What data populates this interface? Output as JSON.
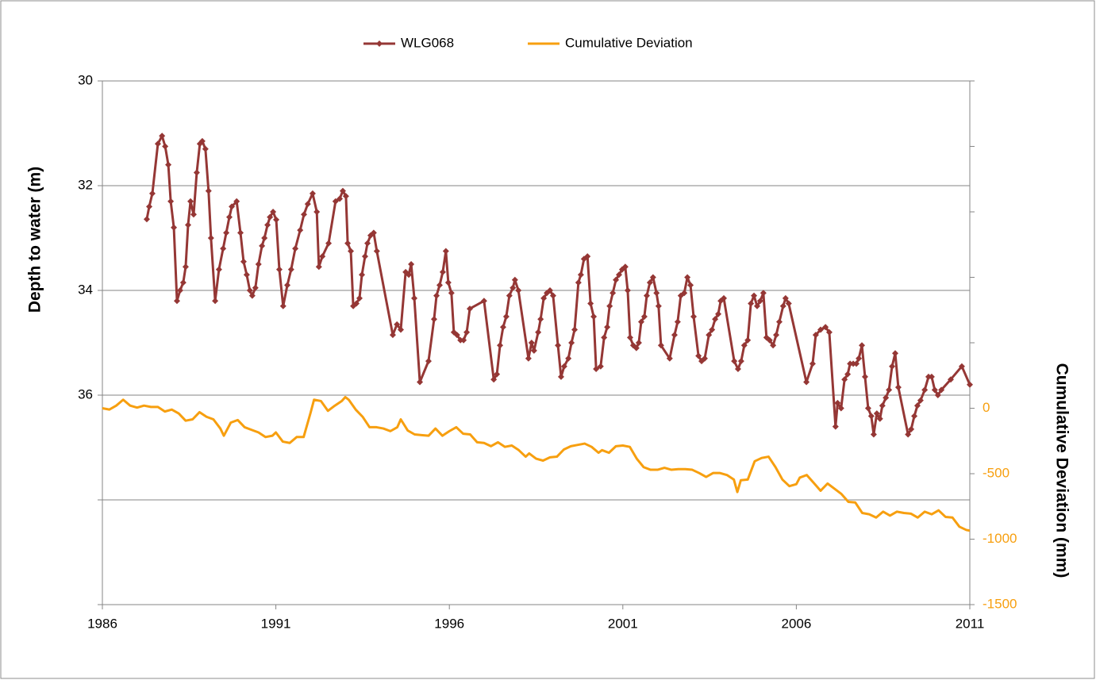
{
  "chart_data": {
    "type": "line",
    "y_title": "Depth to water (m)",
    "y2_title": "Cumulative Deviation (mm)",
    "xlim": [
      1986,
      2011
    ],
    "xticks": [
      1986,
      1991,
      1996,
      2001,
      2006,
      2011
    ],
    "ylim": [
      40,
      30
    ],
    "yticks": [
      30,
      32,
      34,
      36,
      {
        "value": 38,
        "label": null
      },
      {
        "value": 40,
        "label": null
      }
    ],
    "y2lim": [
      -1500,
      2500
    ],
    "y2ticks": [
      -1500,
      -1000,
      -500,
      0,
      {
        "value": 500,
        "label": null
      },
      {
        "value": 1000,
        "label": null
      },
      {
        "value": 1500,
        "label": null
      },
      {
        "value": 2000,
        "label": null
      },
      {
        "value": 2500,
        "label": null
      }
    ],
    "grid": true,
    "legend": "top",
    "series": [
      {
        "name": "WLG068",
        "color": "#953735",
        "marker": "diamond",
        "x": [
          1987.28,
          1987.35,
          1987.44,
          1987.6,
          1987.72,
          1987.81,
          1987.9,
          1987.97,
          1988.06,
          1988.15,
          1988.24,
          1988.33,
          1988.4,
          1988.47,
          1988.54,
          1988.63,
          1988.72,
          1988.81,
          1988.88,
          1988.97,
          1989.06,
          1989.13,
          1989.25,
          1989.36,
          1989.48,
          1989.57,
          1989.66,
          1989.73,
          1989.87,
          1989.98,
          1990.07,
          1990.16,
          1990.25,
          1990.32,
          1990.41,
          1990.5,
          1990.6,
          1990.67,
          1990.76,
          1990.83,
          1990.92,
          1991.01,
          1991.1,
          1991.21,
          1991.33,
          1991.44,
          1991.56,
          1991.7,
          1991.81,
          1991.92,
          1992.06,
          1992.18,
          1992.24,
          1992.34,
          1992.52,
          1992.72,
          1992.84,
          1992.93,
          1993.02,
          1993.07,
          1993.16,
          1993.23,
          1993.32,
          1993.41,
          1993.48,
          1993.57,
          1993.64,
          1993.73,
          1993.82,
          1993.91,
          1994.37,
          1994.49,
          1994.6,
          1994.74,
          1994.83,
          1994.9,
          1994.99,
          1995.15,
          1995.4,
          1995.56,
          1995.63,
          1995.72,
          1995.81,
          1995.9,
          1995.97,
          1996.06,
          1996.13,
          1996.22,
          1996.32,
          1996.41,
          1996.5,
          1996.59,
          1997.0,
          1997.28,
          1997.37,
          1997.46,
          1997.55,
          1997.64,
          1997.73,
          1997.83,
          1997.89,
          1997.99,
          1998.28,
          1998.37,
          1998.44,
          1998.56,
          1998.63,
          1998.72,
          1998.81,
          1998.9,
          1998.99,
          1999.13,
          1999.22,
          1999.31,
          1999.43,
          1999.52,
          1999.61,
          1999.72,
          1999.79,
          1999.88,
          1999.98,
          2000.07,
          2000.16,
          2000.23,
          2000.36,
          2000.46,
          2000.55,
          2000.62,
          2000.71,
          2000.8,
          2000.89,
          2000.98,
          2001.07,
          2001.14,
          2001.21,
          2001.3,
          2001.39,
          2001.46,
          2001.53,
          2001.62,
          2001.69,
          2001.78,
          2001.87,
          2001.97,
          2002.03,
          2002.1,
          2002.35,
          2002.49,
          2002.58,
          2002.67,
          2002.77,
          2002.86,
          2002.95,
          2003.04,
          2003.18,
          2003.27,
          2003.36,
          2003.48,
          2003.57,
          2003.66,
          2003.75,
          2003.82,
          2003.91,
          2004.21,
          2004.32,
          2004.41,
          2004.5,
          2004.6,
          2004.69,
          2004.78,
          2004.87,
          2004.96,
          2005.05,
          2005.14,
          2005.23,
          2005.33,
          2005.42,
          2005.51,
          2005.62,
          2005.69,
          2005.78,
          2006.29,
          2006.47,
          2006.56,
          2006.7,
          2006.84,
          2006.95,
          2007.13,
          2007.19,
          2007.29,
          2007.39,
          2007.48,
          2007.55,
          2007.64,
          2007.73,
          2007.8,
          2007.89,
          2007.98,
          2008.07,
          2008.16,
          2008.23,
          2008.32,
          2008.41,
          2008.48,
          2008.58,
          2008.67,
          2008.76,
          2008.85,
          2008.94,
          2009.22,
          2009.31,
          2009.4,
          2009.49,
          2009.58,
          2009.7,
          2009.81,
          2009.9,
          2009.99,
          2010.08,
          2010.18,
          2010.45,
          2010.77,
          2011.0
        ],
        "values": [
          32.64,
          32.4,
          32.15,
          31.2,
          31.05,
          31.25,
          31.6,
          32.3,
          32.8,
          34.2,
          34.0,
          33.85,
          33.55,
          32.75,
          32.3,
          32.55,
          31.75,
          31.2,
          31.15,
          31.3,
          32.1,
          33.0,
          34.2,
          33.6,
          33.2,
          32.9,
          32.6,
          32.4,
          32.3,
          32.9,
          33.45,
          33.7,
          34.0,
          34.1,
          33.95,
          33.5,
          33.15,
          33.0,
          32.75,
          32.6,
          32.5,
          32.65,
          33.6,
          34.3,
          33.9,
          33.6,
          33.2,
          32.85,
          32.55,
          32.35,
          32.15,
          32.5,
          33.55,
          33.35,
          33.1,
          32.3,
          32.25,
          32.1,
          32.2,
          33.1,
          33.25,
          34.3,
          34.25,
          34.15,
          33.7,
          33.35,
          33.1,
          32.95,
          32.9,
          33.25,
          34.85,
          34.65,
          34.75,
          33.65,
          33.7,
          33.5,
          34.15,
          35.75,
          35.35,
          34.55,
          34.1,
          33.9,
          33.65,
          33.25,
          33.85,
          34.05,
          34.8,
          34.85,
          34.95,
          34.95,
          34.8,
          34.35,
          34.2,
          35.7,
          35.6,
          35.05,
          34.7,
          34.5,
          34.1,
          33.95,
          33.8,
          34.0,
          35.3,
          35.0,
          35.15,
          34.8,
          34.55,
          34.15,
          34.05,
          34.0,
          34.1,
          35.05,
          35.65,
          35.45,
          35.3,
          35.0,
          34.75,
          33.85,
          33.7,
          33.4,
          33.35,
          34.25,
          34.5,
          35.5,
          35.45,
          34.9,
          34.7,
          34.3,
          34.05,
          33.8,
          33.7,
          33.6,
          33.55,
          34.0,
          34.9,
          35.05,
          35.1,
          35.0,
          34.6,
          34.5,
          34.1,
          33.85,
          33.75,
          34.05,
          34.3,
          35.05,
          35.3,
          34.85,
          34.6,
          34.1,
          34.05,
          33.75,
          33.9,
          34.5,
          35.25,
          35.35,
          35.3,
          34.85,
          34.75,
          34.55,
          34.45,
          34.2,
          34.15,
          35.35,
          35.5,
          35.35,
          35.05,
          34.95,
          34.25,
          34.1,
          34.3,
          34.2,
          34.05,
          34.9,
          34.95,
          35.05,
          34.85,
          34.6,
          34.3,
          34.15,
          34.25,
          35.75,
          35.4,
          34.85,
          34.75,
          34.7,
          34.8,
          36.6,
          36.15,
          36.25,
          35.7,
          35.6,
          35.4,
          35.4,
          35.4,
          35.3,
          35.05,
          35.65,
          36.25,
          36.4,
          36.75,
          36.35,
          36.45,
          36.2,
          36.05,
          35.9,
          35.45,
          35.2,
          35.85,
          36.75,
          36.65,
          36.4,
          36.2,
          36.1,
          35.9,
          35.65,
          35.65,
          35.9,
          36.0,
          35.9,
          35.7,
          35.45,
          35.8
        ]
      },
      {
        "name": "Cumulative Deviation",
        "color": "#f79f0f",
        "axis": "y2",
        "x": [
          1986.0,
          1986.2,
          1986.4,
          1986.6,
          1986.8,
          1987.0,
          1987.2,
          1987.4,
          1987.6,
          1987.8,
          1988.0,
          1988.2,
          1988.4,
          1988.6,
          1988.8,
          1989.0,
          1989.2,
          1989.4,
          1989.5,
          1989.7,
          1989.9,
          1990.1,
          1990.3,
          1990.5,
          1990.7,
          1990.9,
          1991.0,
          1991.2,
          1991.4,
          1991.6,
          1991.8,
          1992.0,
          1992.1,
          1992.3,
          1992.5,
          1992.7,
          1992.9,
          1993.0,
          1993.1,
          1993.3,
          1993.5,
          1993.7,
          1993.9,
          1994.1,
          1994.3,
          1994.5,
          1994.6,
          1994.8,
          1995.0,
          1995.2,
          1995.4,
          1995.6,
          1995.8,
          1996.0,
          1996.2,
          1996.4,
          1996.6,
          1996.8,
          1997.0,
          1997.2,
          1997.4,
          1997.6,
          1997.8,
          1998.0,
          1998.2,
          1998.3,
          1998.5,
          1998.7,
          1998.9,
          1999.1,
          1999.3,
          1999.5,
          1999.7,
          1999.9,
          2000.1,
          2000.3,
          2000.4,
          2000.6,
          2000.8,
          2001.0,
          2001.2,
          2001.4,
          2001.6,
          2001.8,
          2002.0,
          2002.2,
          2002.4,
          2002.6,
          2002.8,
          2003.0,
          2003.2,
          2003.4,
          2003.6,
          2003.8,
          2004.0,
          2004.2,
          2004.3,
          2004.4,
          2004.6,
          2004.8,
          2005.0,
          2005.2,
          2005.4,
          2005.6,
          2005.8,
          2006.0,
          2006.1,
          2006.3,
          2006.5,
          2006.7,
          2006.9,
          2007.1,
          2007.3,
          2007.5,
          2007.7,
          2007.9,
          2008.1,
          2008.3,
          2008.5,
          2008.7,
          2008.9,
          2009.1,
          2009.3,
          2009.5,
          2009.7,
          2009.9,
          2010.1,
          2010.3,
          2010.5,
          2010.7,
          2010.9,
          2011.0
        ],
        "values": [
          0,
          -10,
          20,
          65,
          20,
          5,
          20,
          10,
          10,
          -25,
          -10,
          -40,
          -95,
          -85,
          -30,
          -65,
          -85,
          -155,
          -210,
          -110,
          -90,
          -145,
          -165,
          -185,
          -220,
          -210,
          -185,
          -255,
          -265,
          -220,
          -220,
          -35,
          65,
          55,
          -20,
          20,
          55,
          85,
          65,
          -10,
          -65,
          -145,
          -145,
          -155,
          -175,
          -145,
          -85,
          -170,
          -200,
          -205,
          -210,
          -155,
          -210,
          -175,
          -145,
          -195,
          -200,
          -260,
          -265,
          -290,
          -260,
          -295,
          -285,
          -320,
          -370,
          -345,
          -385,
          -400,
          -375,
          -370,
          -315,
          -290,
          -280,
          -270,
          -295,
          -340,
          -320,
          -340,
          -290,
          -285,
          -295,
          -385,
          -450,
          -470,
          -470,
          -455,
          -470,
          -465,
          -465,
          -470,
          -495,
          -525,
          -495,
          -495,
          -510,
          -545,
          -640,
          -550,
          -545,
          -405,
          -380,
          -370,
          -450,
          -545,
          -595,
          -580,
          -530,
          -510,
          -570,
          -630,
          -575,
          -615,
          -655,
          -715,
          -720,
          -800,
          -810,
          -835,
          -790,
          -820,
          -790,
          -800,
          -805,
          -835,
          -790,
          -810,
          -780,
          -830,
          -835,
          -905,
          -930,
          -935
        ]
      }
    ]
  }
}
